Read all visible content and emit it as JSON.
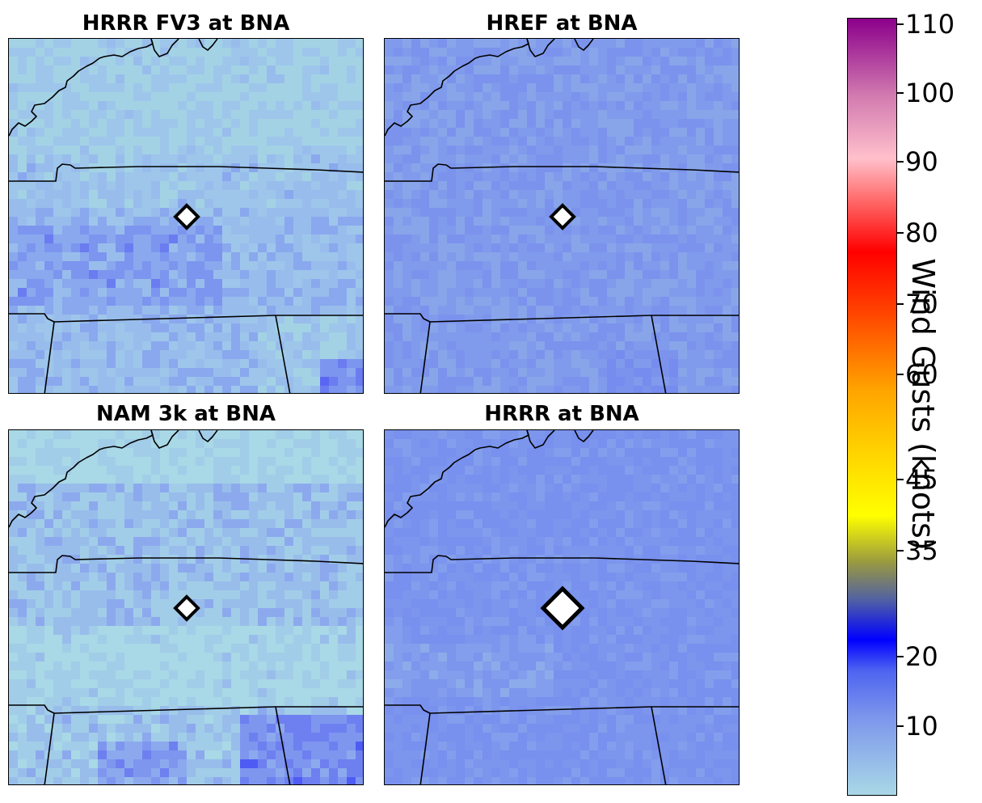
{
  "panels": [
    {
      "title": "HRRR FV3 at BNA",
      "base_color": "#9dc3ea",
      "variant": "a"
    },
    {
      "title": "HREF at BNA",
      "base_color": "#86a3ea",
      "variant": "b"
    },
    {
      "title": "NAM 3k at BNA",
      "base_color": "#9cbbea",
      "variant": "c"
    },
    {
      "title": "HRRR at BNA",
      "base_color": "#7f9bee",
      "variant": "d"
    }
  ],
  "colorbar": {
    "label": "Wind Gusts (knots)",
    "vmin": 0,
    "vmax": 110,
    "ticks": [
      "10",
      "20",
      "35",
      "45",
      "60",
      "70",
      "80",
      "90",
      "100",
      "110"
    ],
    "stops": [
      {
        "color": "#a9d8e6",
        "pos": 0
      },
      {
        "color": "#7c96ec",
        "pos": 0.1
      },
      {
        "color": "#4e64f0",
        "pos": 0.16
      },
      {
        "color": "#0000ff",
        "pos": 0.2
      },
      {
        "color": "#4f5fa5",
        "pos": 0.25
      },
      {
        "color": "#9a9a40",
        "pos": 0.3
      },
      {
        "color": "#ffff00",
        "pos": 0.36
      },
      {
        "color": "#ffd400",
        "pos": 0.44
      },
      {
        "color": "#ffa500",
        "pos": 0.52
      },
      {
        "color": "#ff4500",
        "pos": 0.62
      },
      {
        "color": "#ff0000",
        "pos": 0.7
      },
      {
        "color": "#ff7070",
        "pos": 0.77
      },
      {
        "color": "#ffc0cb",
        "pos": 0.82
      },
      {
        "color": "#d27bb0",
        "pos": 0.9
      },
      {
        "color": "#8b008b",
        "pos": 1
      }
    ]
  }
}
